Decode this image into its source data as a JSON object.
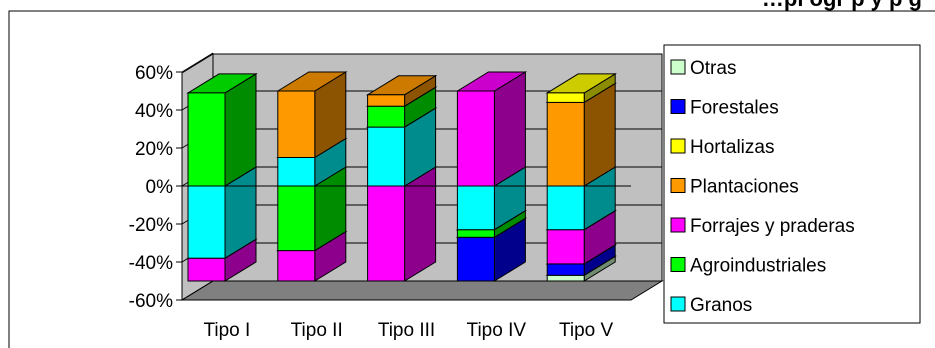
{
  "chart_data": {
    "type": "bar",
    "stacked": true,
    "three_d": true,
    "title": "…pl ogr p   y p g",
    "categories": [
      "Tipo I",
      "Tipo II",
      "Tipo III",
      "Tipo IV",
      "Tipo V"
    ],
    "y_ticks": [
      "60%",
      "40%",
      "20%",
      "0%",
      "-20%",
      "-40%",
      "-60%"
    ],
    "ylim": [
      -0.6,
      0.6
    ],
    "grid": true,
    "legend_position": "right",
    "series": [
      {
        "name": "Granos",
        "color": "#00ffff",
        "values": [
          -0.38,
          0.15,
          0.31,
          -0.23,
          -0.23
        ]
      },
      {
        "name": "Agroindustriales",
        "color": "#00ff00",
        "values": [
          0.49,
          -0.34,
          0.11,
          -0.04,
          0.0
        ]
      },
      {
        "name": "Forrajes y praderas",
        "color": "#ff00ff",
        "values": [
          -0.12,
          -0.16,
          -0.5,
          0.5,
          -0.18
        ]
      },
      {
        "name": "Plantaciones",
        "color": "#ff9900",
        "values": [
          0.0,
          0.35,
          0.06,
          0.0,
          0.44
        ]
      },
      {
        "name": "Hortalizas",
        "color": "#ffff00",
        "values": [
          0.0,
          0.0,
          0.0,
          0.0,
          0.05
        ]
      },
      {
        "name": "Forestales",
        "color": "#0000ff",
        "values": [
          0.0,
          0.0,
          0.0,
          -0.23,
          -0.06
        ]
      },
      {
        "name": "Otras",
        "color": "#ccffcc",
        "values": [
          0.0,
          0.0,
          0.0,
          0.0,
          -0.03
        ]
      }
    ]
  }
}
